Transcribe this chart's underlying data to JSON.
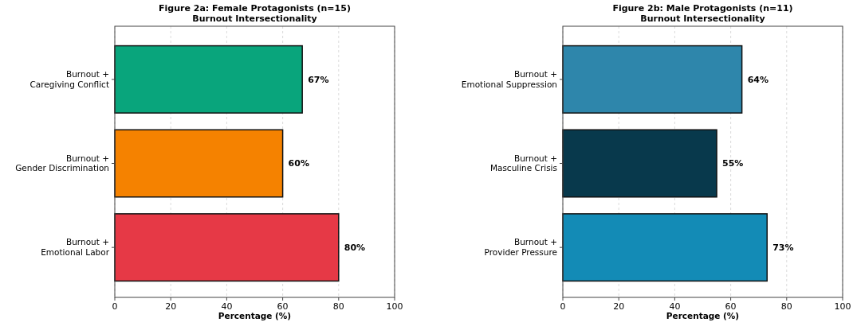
{
  "chart_data": [
    {
      "type": "bar",
      "orientation": "horizontal",
      "title": "Figure 2a: Female Protagonists (n=15)\nBurnout Intersectionality",
      "xlabel": "Percentage (%)",
      "categories": [
        "Burnout +\nCaregiving Conflict",
        "Burnout +\nGender Discrimination",
        "Burnout +\nEmotional Labor"
      ],
      "values": [
        67,
        60,
        80
      ],
      "colors": [
        "#09a57c",
        "#f58200",
        "#e63946"
      ],
      "value_labels": [
        "67%",
        "60%",
        "80%"
      ],
      "xlim": [
        0,
        100
      ],
      "xticks": [
        0,
        20,
        40,
        60,
        80,
        100
      ],
      "grid": "x"
    },
    {
      "type": "bar",
      "orientation": "horizontal",
      "title": "Figure 2b: Male Protagonists (n=11)\nBurnout Intersectionality",
      "xlabel": "Percentage (%)",
      "categories": [
        "Burnout +\nEmotional Suppression",
        "Burnout +\nMasculine Crisis",
        "Burnout +\nProvider Pressure"
      ],
      "values": [
        64,
        55,
        73
      ],
      "colors": [
        "#2e86ab",
        "#08394c",
        "#138bb6"
      ],
      "value_labels": [
        "64%",
        "55%",
        "73%"
      ],
      "xlim": [
        0,
        100
      ],
      "xticks": [
        0,
        20,
        40,
        60,
        80,
        100
      ],
      "grid": "x"
    }
  ]
}
